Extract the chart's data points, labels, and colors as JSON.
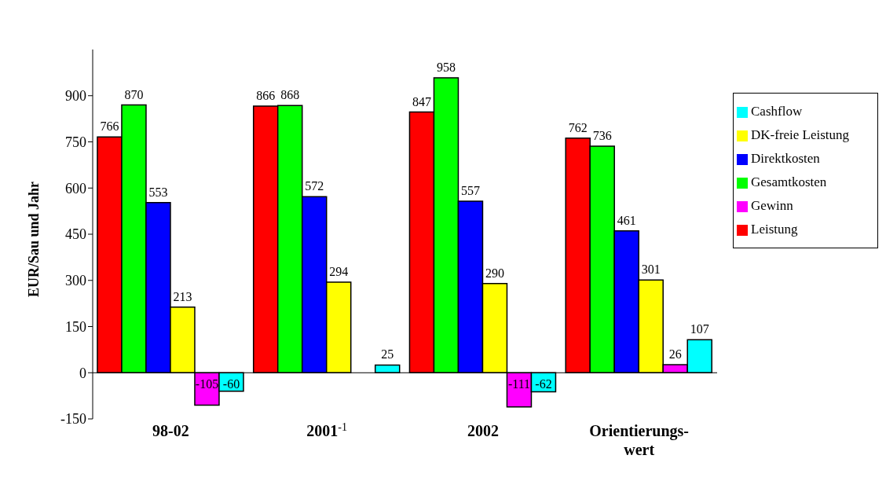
{
  "chart_data": {
    "type": "bar",
    "ylabel": "EUR/Sau und Jahr",
    "categories": [
      "98-02",
      "2001$^{-1}$",
      "2002",
      "Orientierungs-wert"
    ],
    "series": [
      {
        "name": "Leistung",
        "color": "#ff0000",
        "values": [
          766,
          866,
          847,
          762
        ]
      },
      {
        "name": "Gesamtkosten",
        "color": "#00ff00",
        "values": [
          870,
          868,
          958,
          736
        ]
      },
      {
        "name": "Direktkosten",
        "color": "#0000ff",
        "values": [
          553,
          572,
          557,
          461
        ]
      },
      {
        "name": "DK-freie Leistung",
        "color": "#ffff00",
        "values": [
          213,
          294,
          290,
          301
        ]
      },
      {
        "name": "Gewinn",
        "color": "#ff00ff",
        "values": [
          -105,
          null,
          -111,
          26
        ]
      },
      {
        "name": "Cashflow",
        "color": "#00ffff",
        "values": [
          -60,
          25,
          -62,
          107
        ]
      }
    ],
    "ylim": [
      -150,
      1050
    ],
    "yticks": [
      -150,
      0,
      150,
      300,
      450,
      600,
      750,
      900
    ],
    "data_labels": true,
    "legend": "right"
  }
}
